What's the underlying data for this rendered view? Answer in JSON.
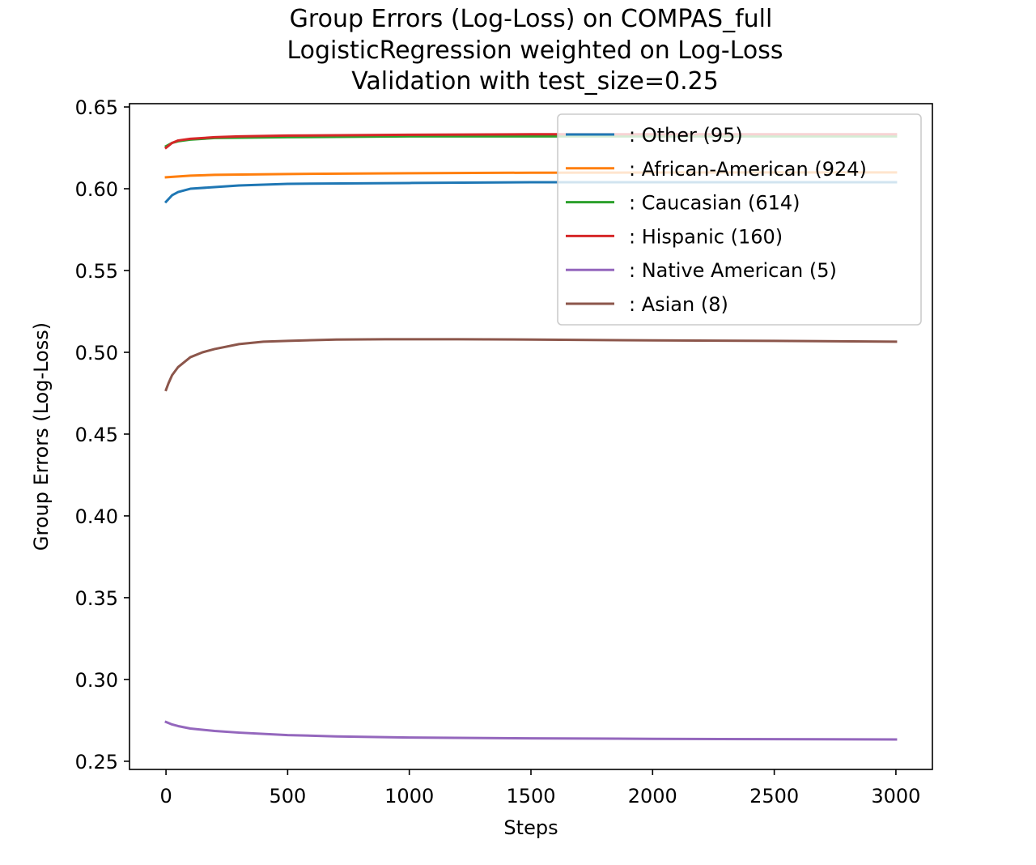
{
  "chart_data": {
    "type": "line",
    "title_lines": [
      "Group Errors (Log-Loss) on COMPAS_full",
      "LogisticRegression weighted on Log-Loss",
      "Validation with test_size=0.25"
    ],
    "xlabel": "Steps",
    "ylabel": "Group Errors (Log-Loss)",
    "xlim": [
      -150,
      3150
    ],
    "ylim": [
      0.245,
      0.652
    ],
    "xticks": [
      0,
      500,
      1000,
      1500,
      2000,
      2500,
      3000
    ],
    "xtick_labels": [
      "0",
      "500",
      "1000",
      "1500",
      "2000",
      "2500",
      "3000"
    ],
    "yticks": [
      0.25,
      0.3,
      0.35,
      0.4,
      0.45,
      0.5,
      0.55,
      0.6,
      0.65
    ],
    "ytick_labels": [
      "0.25",
      "0.30",
      "0.35",
      "0.40",
      "0.45",
      "0.50",
      "0.55",
      "0.60",
      "0.65"
    ],
    "grid": false,
    "legend_position": "upper right",
    "series": [
      {
        "name": ": Other  (95)",
        "color": "#1f77b4",
        "x": [
          0,
          25,
          50,
          100,
          200,
          300,
          500,
          1000,
          1500,
          2000,
          2500,
          3000
        ],
        "y": [
          0.592,
          0.596,
          0.598,
          0.6,
          0.601,
          0.602,
          0.603,
          0.6035,
          0.604,
          0.604,
          0.604,
          0.604
        ]
      },
      {
        "name": ": African-American  (924)",
        "color": "#ff7f0e",
        "x": [
          0,
          50,
          100,
          200,
          500,
          1000,
          1500,
          2000,
          2500,
          3000
        ],
        "y": [
          0.607,
          0.6075,
          0.608,
          0.6085,
          0.609,
          0.6095,
          0.6098,
          0.6099,
          0.61,
          0.61
        ]
      },
      {
        "name": ": Caucasian  (614)",
        "color": "#2ca02c",
        "x": [
          0,
          25,
          50,
          100,
          200,
          500,
          1000,
          1500,
          2000,
          2500,
          3000
        ],
        "y": [
          0.626,
          0.628,
          0.629,
          0.63,
          0.631,
          0.6315,
          0.632,
          0.632,
          0.632,
          0.632,
          0.632
        ]
      },
      {
        "name": ": Hispanic  (160)",
        "color": "#d62728",
        "x": [
          0,
          25,
          50,
          100,
          200,
          300,
          500,
          1000,
          1500,
          2000,
          2500,
          3000
        ],
        "y": [
          0.625,
          0.628,
          0.6295,
          0.6305,
          0.6315,
          0.632,
          0.6325,
          0.633,
          0.6333,
          0.6333,
          0.6333,
          0.6333
        ]
      },
      {
        "name": ": Native American  (5)",
        "color": "#9467bd",
        "x": [
          0,
          25,
          50,
          100,
          200,
          300,
          500,
          700,
          1000,
          1500,
          2000,
          2500,
          3000
        ],
        "y": [
          0.274,
          0.2725,
          0.2715,
          0.27,
          0.2685,
          0.2675,
          0.266,
          0.2652,
          0.2645,
          0.264,
          0.2637,
          0.2635,
          0.2633
        ]
      },
      {
        "name": ": Asian  (8)",
        "color": "#8c564b",
        "x": [
          0,
          10,
          25,
          50,
          100,
          150,
          200,
          300,
          400,
          500,
          700,
          900,
          1200,
          1500,
          2000,
          2500,
          3000
        ],
        "y": [
          0.477,
          0.481,
          0.486,
          0.491,
          0.497,
          0.5,
          0.502,
          0.505,
          0.5065,
          0.507,
          0.5078,
          0.508,
          0.508,
          0.5078,
          0.5073,
          0.507,
          0.5065
        ]
      }
    ]
  }
}
